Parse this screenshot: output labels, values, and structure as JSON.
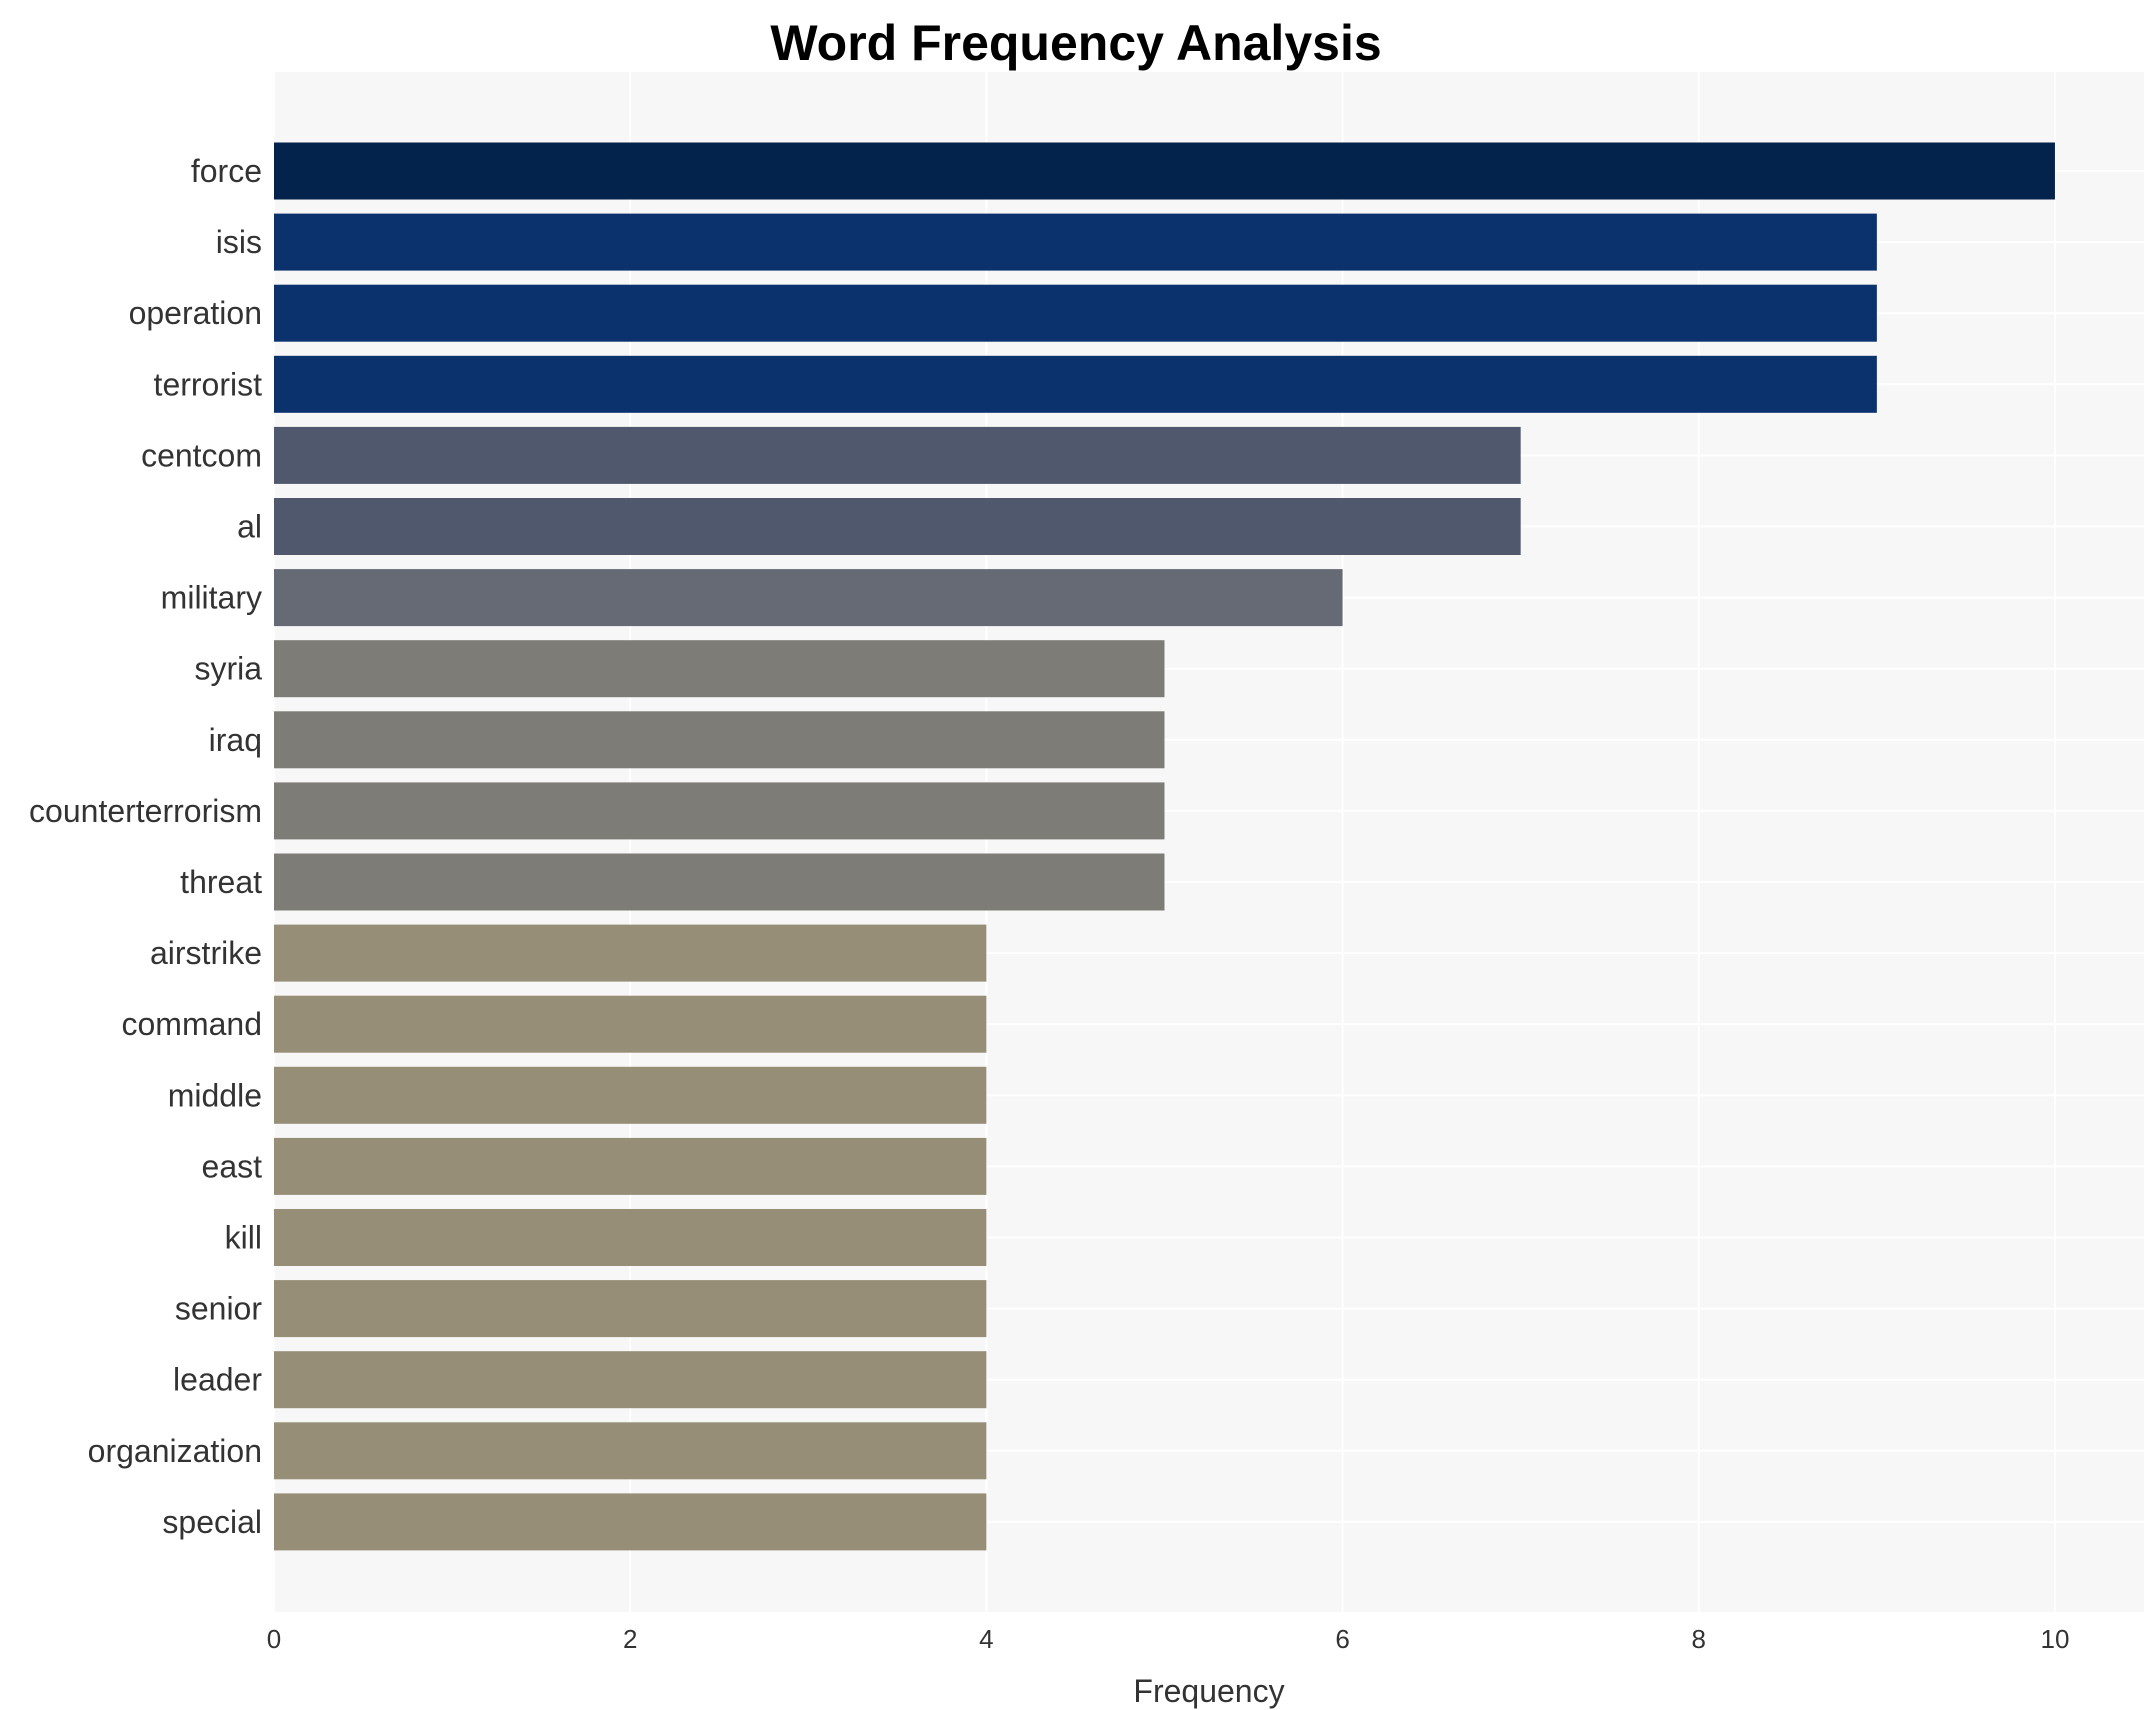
{
  "chart_data": {
    "type": "bar",
    "orientation": "horizontal",
    "title": "Word Frequency Analysis",
    "xlabel": "Frequency",
    "ylabel": "",
    "xlim": [
      0,
      10.5
    ],
    "xticks": [
      "0",
      "2",
      "4",
      "6",
      "8",
      "10"
    ],
    "grid": true,
    "categories": [
      "force",
      "isis",
      "operation",
      "terrorist",
      "centcom",
      "al",
      "military",
      "syria",
      "iraq",
      "counterterrorism",
      "threat",
      "airstrike",
      "command",
      "middle",
      "east",
      "kill",
      "senior",
      "leader",
      "organization",
      "special"
    ],
    "values": [
      10,
      9,
      9,
      9,
      7,
      7,
      6,
      5,
      5,
      5,
      5,
      4,
      4,
      4,
      4,
      4,
      4,
      4,
      4,
      4
    ],
    "colors": {
      "10": "#03224c",
      "9": "#0c326e",
      "7": "#4f586d",
      "6": "#666a74",
      "5": "#7d7c77",
      "4": "#968e76"
    },
    "background": "#f7f7f7"
  }
}
